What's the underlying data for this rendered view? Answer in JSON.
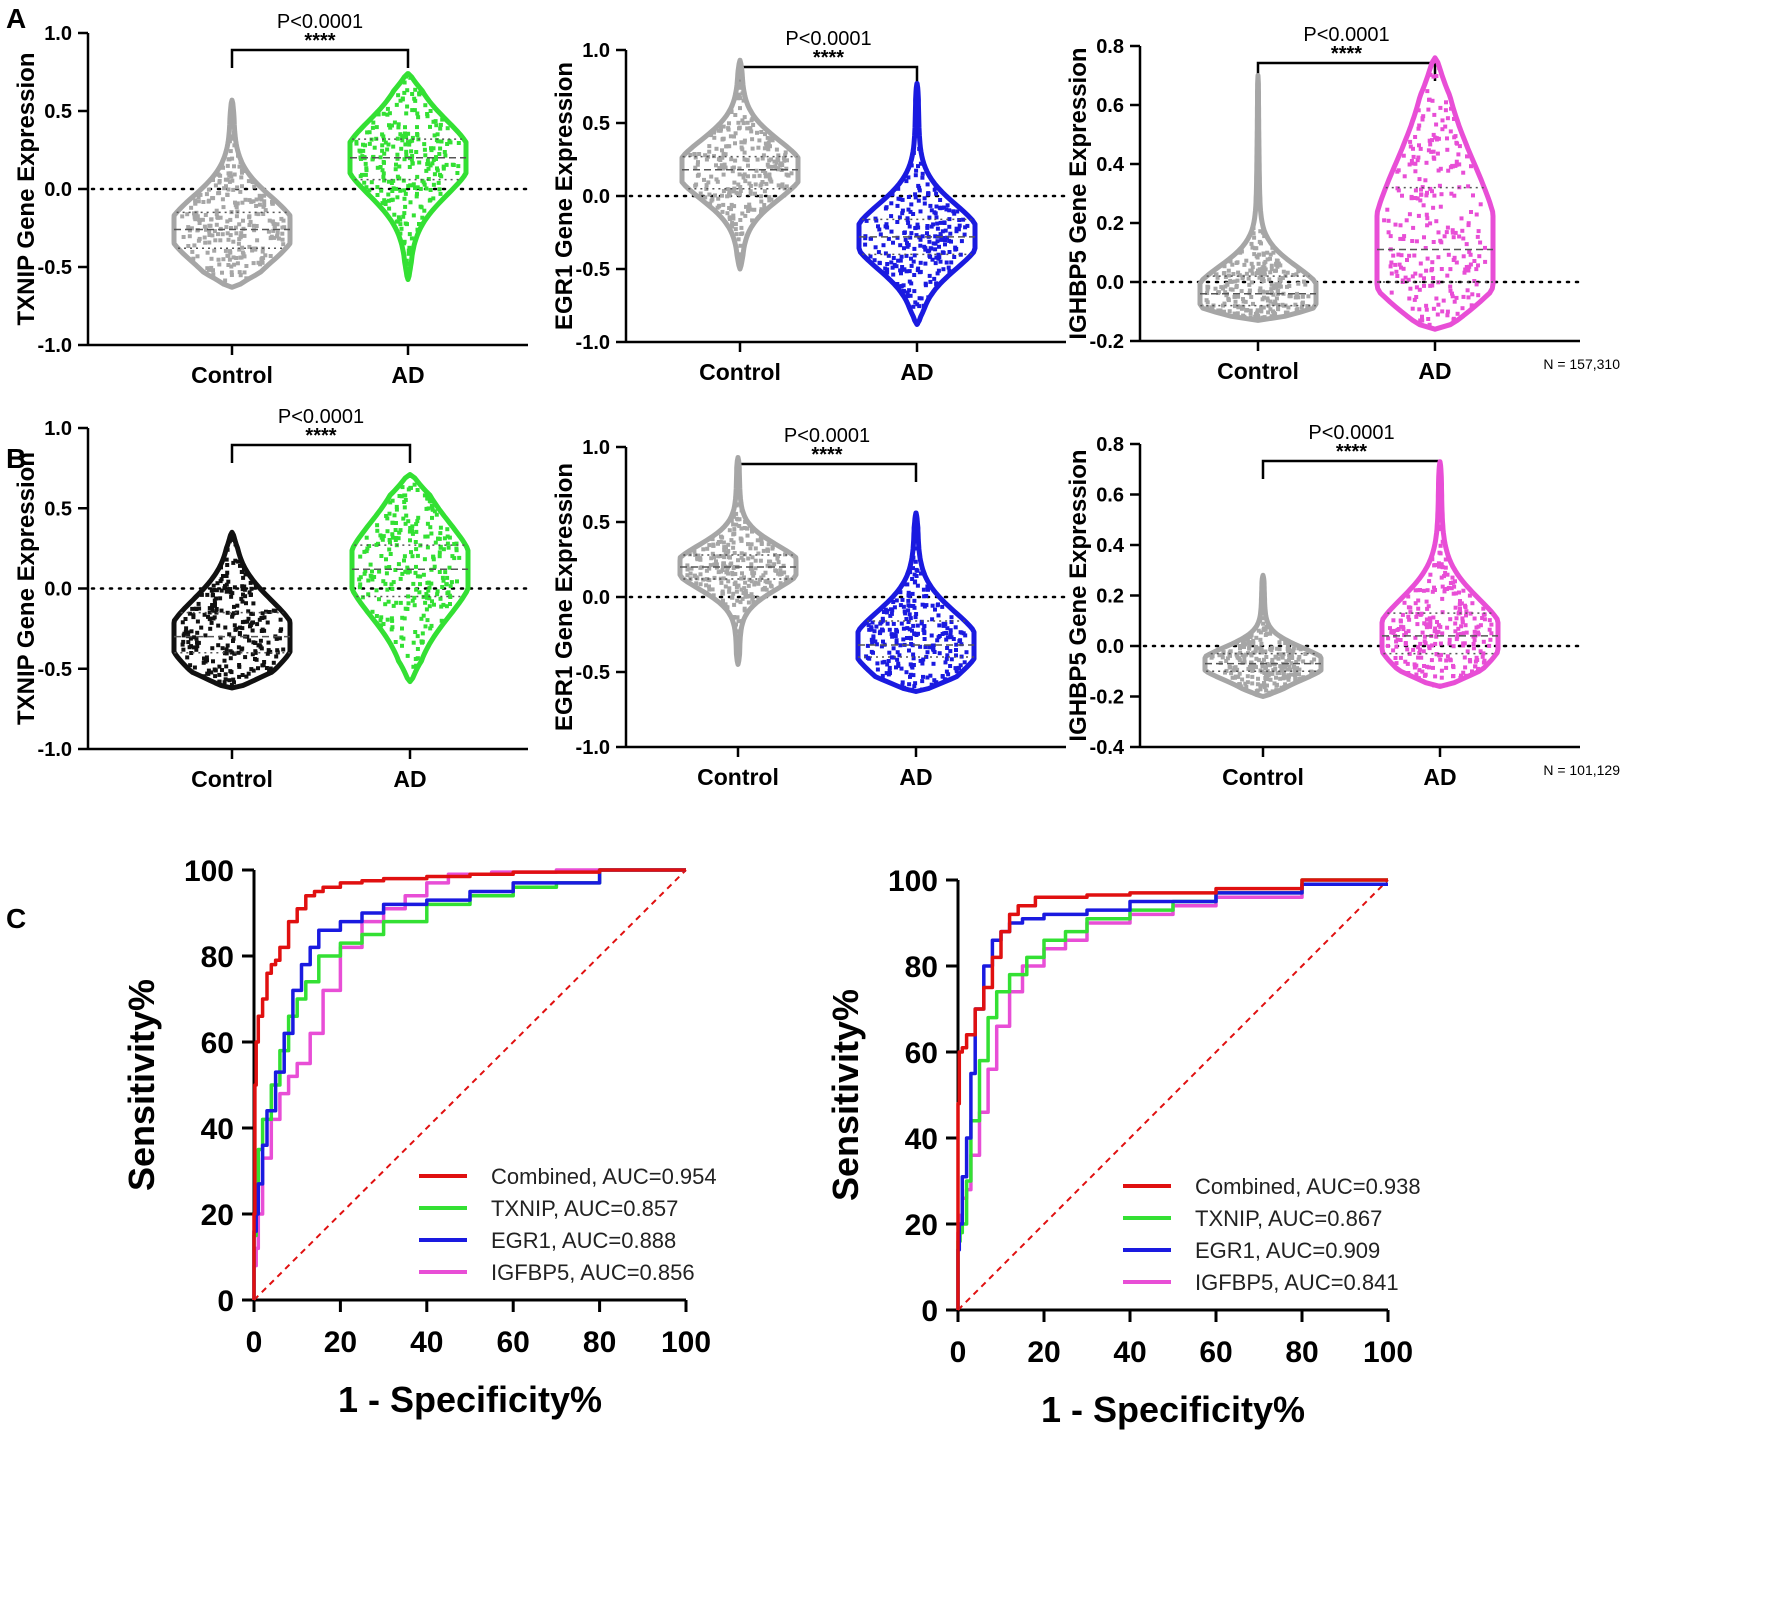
{
  "panels": {
    "A": "A",
    "B": "B",
    "C": "C"
  },
  "colors": {
    "gray": "#a6a6a6",
    "green": "#33e033",
    "blue": "#1a1ae0",
    "pink": "#e84ed6",
    "black": "#111111",
    "red": "#e01010"
  },
  "chart_data": [
    {
      "type": "violin",
      "panel": "A",
      "ylabel": "TXNIP Gene Expression",
      "ylim": [
        -1.0,
        1.0
      ],
      "yticks": [
        "1.0",
        "0.5",
        "0.0",
        "-0.5",
        "-1.0"
      ],
      "categories": [
        "Control",
        "AD"
      ],
      "p_text": "P<0.0001",
      "sig": "****",
      "series": [
        {
          "name": "Control",
          "color": "gray",
          "range": [
            -0.63,
            0.57
          ],
          "median": -0.26,
          "q1": -0.38,
          "q3": -0.15
        },
        {
          "name": "AD",
          "color": "green",
          "range": [
            -0.58,
            0.74
          ],
          "median": 0.2,
          "q1": 0.06,
          "q3": 0.32
        }
      ]
    },
    {
      "type": "violin",
      "panel": "A",
      "ylabel": "EGR1 Gene Expression",
      "ylim": [
        -1.0,
        1.0
      ],
      "yticks": [
        "1.0",
        "0.5",
        "0.0",
        "-0.5",
        "-1.0"
      ],
      "categories": [
        "Control",
        "AD"
      ],
      "p_text": "P<0.0001",
      "sig": "****",
      "series": [
        {
          "name": "Control",
          "color": "gray",
          "range": [
            -0.5,
            0.93
          ],
          "median": 0.18,
          "q1": 0.05,
          "q3": 0.27
        },
        {
          "name": "AD",
          "color": "blue",
          "range": [
            -0.88,
            0.77
          ],
          "median": -0.28,
          "q1": -0.4,
          "q3": -0.16
        }
      ]
    },
    {
      "type": "violin",
      "panel": "A",
      "ylabel": "IGHBP5 Gene Expression",
      "ylim": [
        -0.2,
        0.8
      ],
      "yticks": [
        "0.8",
        "0.6",
        "0.4",
        "0.2",
        "0.0",
        "-0.2"
      ],
      "categories": [
        "Control",
        "AD"
      ],
      "p_text": "P<0.0001",
      "sig": "****",
      "note": "N = 157,310",
      "series": [
        {
          "name": "Control",
          "color": "gray",
          "range": [
            -0.13,
            0.7
          ],
          "median": -0.04,
          "q1": -0.08,
          "q3": 0.02
        },
        {
          "name": "AD",
          "color": "pink",
          "range": [
            -0.16,
            0.76
          ],
          "median": 0.11,
          "q1": 0.0,
          "q3": 0.32
        }
      ]
    },
    {
      "type": "violin",
      "panel": "B",
      "ylabel": "TXNIP Gene Expression",
      "ylim": [
        -1.0,
        1.0
      ],
      "yticks": [
        "1.0",
        "0.5",
        "0.0",
        "-0.5",
        "-1.0"
      ],
      "categories": [
        "Control",
        "AD"
      ],
      "p_text": "P<0.0001",
      "sig": "****",
      "series": [
        {
          "name": "Control",
          "color": "black",
          "range": [
            -0.62,
            0.35
          ],
          "median": -0.3,
          "q1": -0.4,
          "q3": -0.15
        },
        {
          "name": "AD",
          "color": "green",
          "range": [
            -0.58,
            0.71
          ],
          "median": 0.12,
          "q1": -0.05,
          "q3": 0.27
        }
      ]
    },
    {
      "type": "violin",
      "panel": "B",
      "ylabel": "EGR1 Gene Expression",
      "ylim": [
        -1.0,
        1.0
      ],
      "yticks": [
        "1.0",
        "0.5",
        "0.0",
        "-0.5",
        "-1.0"
      ],
      "categories": [
        "Control",
        "AD"
      ],
      "p_text": "P<0.0001",
      "sig": "****",
      "series": [
        {
          "name": "Control",
          "color": "gray",
          "range": [
            -0.45,
            0.93
          ],
          "median": 0.2,
          "q1": 0.12,
          "q3": 0.28
        },
        {
          "name": "AD",
          "color": "blue",
          "range": [
            -0.63,
            0.56
          ],
          "median": -0.32,
          "q1": -0.4,
          "q3": -0.16
        }
      ]
    },
    {
      "type": "violin",
      "panel": "B",
      "ylabel": "IGHBP5 Gene Expression",
      "ylim": [
        -0.4,
        0.8
      ],
      "yticks": [
        "0.8",
        "0.6",
        "0.4",
        "0.2",
        "0.0",
        "-0.2",
        "-0.4"
      ],
      "categories": [
        "Control",
        "AD"
      ],
      "p_text": "P<0.0001",
      "sig": "****",
      "note": "N = 101,129",
      "series": [
        {
          "name": "Control",
          "color": "gray",
          "range": [
            -0.2,
            0.28
          ],
          "median": -0.07,
          "q1": -0.1,
          "q3": -0.03
        },
        {
          "name": "AD",
          "color": "pink",
          "range": [
            -0.16,
            0.73
          ],
          "median": 0.04,
          "q1": -0.03,
          "q3": 0.13
        }
      ]
    },
    {
      "type": "line",
      "panel": "C",
      "xlabel": "1 - Specificity%",
      "ylabel": "Sensitivity%",
      "xlim": [
        0,
        100
      ],
      "ylim": [
        0,
        100
      ],
      "ticks": [
        "0",
        "20",
        "40",
        "60",
        "80",
        "100"
      ],
      "series": [
        {
          "name": "Combined",
          "label": "Combined, AUC=0.954",
          "color": "red",
          "x": [
            0,
            0.2,
            0.5,
            1,
            2,
            3,
            4,
            5,
            6,
            8,
            10,
            12,
            14,
            16,
            20,
            25,
            30,
            40,
            50,
            60,
            80,
            100
          ],
          "y": [
            0,
            20,
            50,
            60,
            66,
            70,
            76,
            78,
            79,
            82,
            88,
            91,
            94,
            95,
            96,
            97,
            97.5,
            98,
            98.5,
            99,
            99.5,
            100
          ]
        },
        {
          "name": "TXNIP",
          "label": "TXNIP, AUC=0.857",
          "color": "green",
          "x": [
            0,
            0.5,
            1,
            2,
            4,
            6,
            8,
            10,
            12,
            15,
            20,
            25,
            30,
            40,
            50,
            60,
            70,
            80,
            100
          ],
          "y": [
            0,
            15,
            25,
            35,
            42,
            50,
            58,
            66,
            70,
            74,
            80,
            83,
            85,
            88,
            92,
            94,
            96,
            97,
            100
          ]
        },
        {
          "name": "EGR1",
          "label": "EGR1, AUC=0.888",
          "color": "blue",
          "x": [
            0,
            0.5,
            1,
            2,
            3,
            5,
            7,
            9,
            11,
            13,
            15,
            20,
            25,
            30,
            40,
            50,
            60,
            80,
            100
          ],
          "y": [
            0,
            16,
            20,
            27,
            36,
            44,
            53,
            62,
            72,
            78,
            82,
            86,
            88,
            90,
            92,
            93,
            95,
            97,
            100
          ]
        },
        {
          "name": "IGFBP5",
          "label": "IGFBP5, AUC=0.856",
          "color": "pink",
          "x": [
            0,
            0.5,
            1,
            2,
            4,
            6,
            8,
            10,
            13,
            16,
            20,
            25,
            30,
            35,
            40,
            45,
            55,
            70,
            85,
            100
          ],
          "y": [
            0,
            8,
            12,
            20,
            33,
            42,
            48,
            52,
            55,
            62,
            72,
            82,
            88,
            91,
            94,
            97,
            99,
            99.5,
            100,
            100
          ]
        }
      ]
    },
    {
      "type": "line",
      "panel": "C",
      "xlabel": "1 - Specificity%",
      "ylabel": "Sensitivity%",
      "xlim": [
        0,
        100
      ],
      "ylim": [
        0,
        100
      ],
      "ticks": [
        "0",
        "20",
        "40",
        "60",
        "80",
        "100"
      ],
      "series": [
        {
          "name": "Combined",
          "label": "Combined, AUC=0.938",
          "color": "red",
          "x": [
            0,
            0.3,
            1,
            2,
            4,
            6,
            8,
            10,
            12,
            14,
            18,
            22,
            30,
            40,
            60,
            80,
            100
          ],
          "y": [
            0,
            48,
            60,
            61,
            64,
            70,
            75,
            82,
            88,
            92,
            94,
            96,
            96,
            96.5,
            97,
            98,
            100
          ]
        },
        {
          "name": "TXNIP",
          "label": "TXNIP, AUC=0.867",
          "color": "green",
          "x": [
            0,
            0.5,
            1,
            2,
            3,
            5,
            7,
            9,
            12,
            16,
            20,
            25,
            30,
            40,
            50,
            60,
            80,
            100
          ],
          "y": [
            0,
            16,
            18,
            20,
            30,
            44,
            58,
            68,
            74,
            78,
            82,
            86,
            88,
            91,
            93,
            95,
            97,
            100
          ]
        },
        {
          "name": "EGR1",
          "label": "EGR1, AUC=0.909",
          "color": "blue",
          "x": [
            0,
            0.3,
            1,
            2,
            3,
            4,
            6,
            8,
            10,
            12,
            15,
            20,
            30,
            40,
            60,
            80,
            100
          ],
          "y": [
            0,
            14,
            20,
            31,
            40,
            55,
            70,
            80,
            86,
            88,
            90,
            91,
            92,
            93,
            95,
            97,
            99
          ]
        },
        {
          "name": "IGFBP5",
          "label": "IGFBP5, AUC=0.841",
          "color": "pink",
          "x": [
            0,
            0.5,
            1,
            2,
            3,
            5,
            7,
            9,
            12,
            15,
            20,
            25,
            30,
            40,
            50,
            60,
            80,
            100
          ],
          "y": [
            0,
            18,
            22,
            26,
            28,
            36,
            46,
            56,
            66,
            74,
            80,
            84,
            86,
            90,
            92,
            94,
            96,
            99
          ]
        }
      ]
    }
  ]
}
